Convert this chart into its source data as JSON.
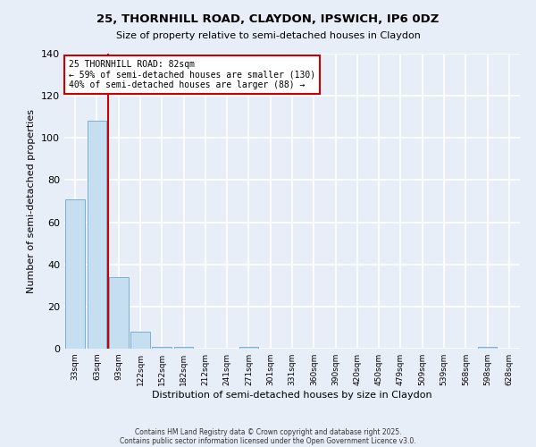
{
  "title_line1": "25, THORNHILL ROAD, CLAYDON, IPSWICH, IP6 0DZ",
  "title_line2": "Size of property relative to semi-detached houses in Claydon",
  "xlabel": "Distribution of semi-detached houses by size in Claydon",
  "ylabel": "Number of semi-detached properties",
  "bar_labels": [
    "33sqm",
    "63sqm",
    "93sqm",
    "122sqm",
    "152sqm",
    "182sqm",
    "212sqm",
    "241sqm",
    "271sqm",
    "301sqm",
    "331sqm",
    "360sqm",
    "390sqm",
    "420sqm",
    "450sqm",
    "479sqm",
    "509sqm",
    "539sqm",
    "568sqm",
    "598sqm",
    "628sqm"
  ],
  "bar_values": [
    71,
    108,
    34,
    8,
    1,
    1,
    0,
    0,
    1,
    0,
    0,
    0,
    0,
    0,
    0,
    0,
    0,
    0,
    0,
    1,
    0
  ],
  "bar_color": "#c5dff0",
  "bar_edge_color": "#7bafd4",
  "ylim": [
    0,
    140
  ],
  "yticks": [
    0,
    20,
    40,
    60,
    80,
    100,
    120,
    140
  ],
  "red_line_bin_index": 2,
  "annotation_title": "25 THORNHILL ROAD: 82sqm",
  "annotation_line1": "← 59% of semi-detached houses are smaller (130)",
  "annotation_line2": "40% of semi-detached houses are larger (88) →",
  "annotation_box_color": "#ffffff",
  "annotation_box_edge_color": "#cc0000",
  "footnote1": "Contains HM Land Registry data © Crown copyright and database right 2025.",
  "footnote2": "Contains public sector information licensed under the Open Government Licence v3.0.",
  "background_color": "#e8eef8",
  "plot_bg_color": "#e8eef8",
  "grid_color": "#ffffff"
}
